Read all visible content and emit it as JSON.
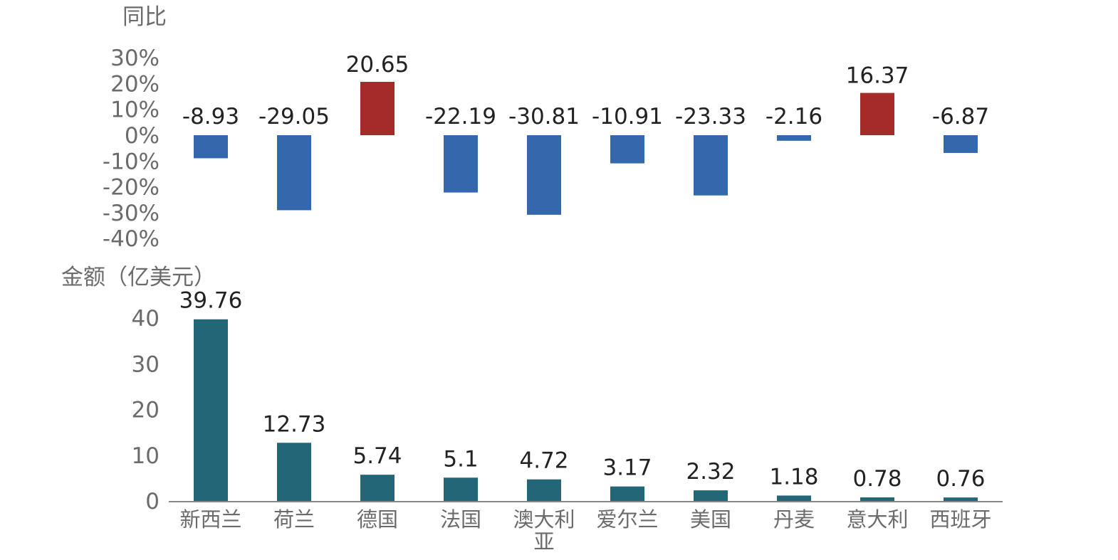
{
  "chart_data": [
    {
      "type": "bar",
      "ylabel": "同比",
      "categories": [
        "新西兰",
        "荷兰",
        "德国",
        "法国",
        "澳大利亚",
        "爱尔兰",
        "美国",
        "丹麦",
        "意大利",
        "西班牙"
      ],
      "values": [
        -8.93,
        -29.05,
        20.65,
        -22.19,
        -30.81,
        -10.91,
        -23.33,
        -2.16,
        16.37,
        -6.87
      ],
      "value_labels": [
        "-8.93",
        "-29.05",
        "20.65",
        "-22.19",
        "-30.81",
        "-10.91",
        "-23.33",
        "-2.16",
        "16.37",
        "-6.87"
      ],
      "ylim": [
        -40,
        30
      ],
      "yticks": [
        "30%",
        "20%",
        "10%",
        "0%",
        "-10%",
        "-20%",
        "-30%",
        "-40%"
      ],
      "ytick_values": [
        30,
        20,
        10,
        0,
        -10,
        -20,
        -30,
        -40
      ],
      "colors": {
        "positive": "#a52a2a",
        "negative": "#3468ac"
      },
      "grid": false
    },
    {
      "type": "bar",
      "ylabel": "金额（亿美元）",
      "categories": [
        "新西兰",
        "荷兰",
        "德国",
        "法国",
        "澳大利亚",
        "爱尔兰",
        "美国",
        "丹麦",
        "意大利",
        "西班牙"
      ],
      "category_lines": [
        [
          "新西兰"
        ],
        [
          "荷兰"
        ],
        [
          "德国"
        ],
        [
          "法国"
        ],
        [
          "澳大利",
          "亚"
        ],
        [
          "爱尔兰"
        ],
        [
          "美国"
        ],
        [
          "丹麦"
        ],
        [
          "意大利"
        ],
        [
          "西班牙"
        ]
      ],
      "values": [
        39.76,
        12.73,
        5.74,
        5.1,
        4.72,
        3.17,
        2.32,
        1.18,
        0.78,
        0.76
      ],
      "value_labels": [
        "39.76",
        "12.73",
        "5.74",
        "5.1",
        "4.72",
        "3.17",
        "2.32",
        "1.18",
        "0.78",
        "0.76"
      ],
      "ylim": [
        0,
        40
      ],
      "yticks": [
        "40",
        "30",
        "20",
        "10",
        "0"
      ],
      "ytick_values": [
        40,
        30,
        20,
        10,
        0
      ],
      "colors": {
        "bar": "#236677",
        "axis": "#888888"
      },
      "grid": false
    }
  ]
}
